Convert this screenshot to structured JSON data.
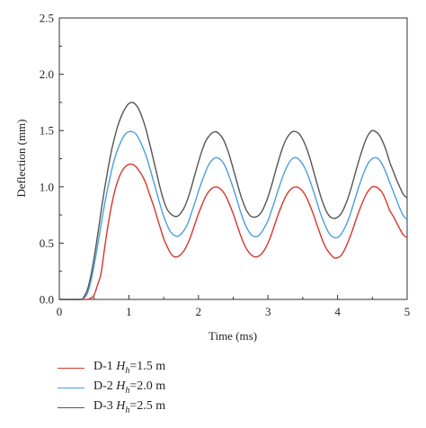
{
  "chart_data": {
    "type": "line",
    "xlabel": "Time (ms)",
    "ylabel": "Deflection (mm)",
    "xlim": [
      0,
      5
    ],
    "ylim": [
      0,
      2.5
    ],
    "x_ticks": [
      "0",
      "1",
      "2",
      "3",
      "4",
      "5"
    ],
    "y_ticks": [
      "0.0",
      "0.5",
      "1.0",
      "1.5",
      "2.0",
      "2.5"
    ],
    "grid": false,
    "legend_position": "bottom-left-outside",
    "series": [
      {
        "name": "D-1 Hh=1.5 m",
        "label_parts": [
          "D-1 ",
          "H",
          "h",
          "=1.5 m"
        ],
        "color": "#d9362b",
        "x": [
          0,
          0.3,
          0.35,
          0.4,
          0.45,
          0.5,
          0.55,
          0.6,
          0.65,
          0.7,
          0.75,
          0.8,
          0.85,
          0.9,
          0.95,
          1.0,
          1.05,
          1.1,
          1.15,
          1.2,
          1.25,
          1.3,
          1.35,
          1.4,
          1.45,
          1.5,
          1.55,
          1.6,
          1.65,
          1.7,
          1.75,
          1.8,
          1.85,
          1.9,
          1.95,
          2.0,
          2.05,
          2.1,
          2.15,
          2.2,
          2.25,
          2.3,
          2.35,
          2.4,
          2.45,
          2.5,
          2.55,
          2.6,
          2.65,
          2.7,
          2.75,
          2.8,
          2.85,
          2.9,
          2.95,
          3.0,
          3.05,
          3.1,
          3.15,
          3.2,
          3.25,
          3.3,
          3.35,
          3.4,
          3.45,
          3.5,
          3.55,
          3.6,
          3.65,
          3.7,
          3.75,
          3.8,
          3.85,
          3.9,
          3.95,
          4.0,
          4.05,
          4.1,
          4.15,
          4.2,
          4.25,
          4.3,
          4.35,
          4.4,
          4.45,
          4.5,
          4.55,
          4.6,
          4.65,
          4.7,
          4.75,
          4.8,
          4.85,
          4.9,
          4.95,
          5.0
        ],
        "y": [
          0,
          0,
          0,
          0,
          0.01,
          0.04,
          0.13,
          0.23,
          0.45,
          0.66,
          0.83,
          0.97,
          1.07,
          1.14,
          1.18,
          1.2,
          1.2,
          1.18,
          1.14,
          1.09,
          1.02,
          0.93,
          0.84,
          0.74,
          0.64,
          0.54,
          0.47,
          0.41,
          0.38,
          0.38,
          0.4,
          0.44,
          0.5,
          0.58,
          0.67,
          0.76,
          0.84,
          0.91,
          0.96,
          0.99,
          1.0,
          0.99,
          0.96,
          0.91,
          0.84,
          0.76,
          0.67,
          0.58,
          0.5,
          0.44,
          0.4,
          0.38,
          0.38,
          0.4,
          0.44,
          0.5,
          0.58,
          0.67,
          0.76,
          0.84,
          0.91,
          0.96,
          0.99,
          1.0,
          0.99,
          0.96,
          0.91,
          0.84,
          0.76,
          0.67,
          0.58,
          0.5,
          0.44,
          0.4,
          0.37,
          0.37,
          0.39,
          0.44,
          0.51,
          0.59,
          0.68,
          0.77,
          0.85,
          0.92,
          0.97,
          1.0,
          1.0,
          0.98,
          0.94,
          0.87,
          0.79,
          0.74,
          0.68,
          0.62,
          0.57,
          0.55
        ]
      },
      {
        "name": "D-2 Hh=2.0 m",
        "label_parts": [
          "D-2 ",
          "H",
          "h",
          "=2.0 m"
        ],
        "color": "#4a9fe0",
        "x": [
          0,
          0.3,
          0.35,
          0.4,
          0.45,
          0.5,
          0.55,
          0.6,
          0.65,
          0.7,
          0.75,
          0.8,
          0.85,
          0.9,
          0.95,
          1.0,
          1.05,
          1.1,
          1.15,
          1.2,
          1.25,
          1.3,
          1.35,
          1.4,
          1.45,
          1.5,
          1.55,
          1.6,
          1.65,
          1.7,
          1.75,
          1.8,
          1.85,
          1.9,
          1.95,
          2.0,
          2.05,
          2.1,
          2.15,
          2.2,
          2.25,
          2.3,
          2.35,
          2.4,
          2.45,
          2.5,
          2.55,
          2.6,
          2.65,
          2.7,
          2.75,
          2.8,
          2.85,
          2.9,
          2.95,
          3.0,
          3.05,
          3.1,
          3.15,
          3.2,
          3.25,
          3.3,
          3.35,
          3.4,
          3.45,
          3.5,
          3.55,
          3.6,
          3.65,
          3.7,
          3.75,
          3.8,
          3.85,
          3.9,
          3.95,
          4.0,
          4.05,
          4.1,
          4.15,
          4.2,
          4.25,
          4.3,
          4.35,
          4.4,
          4.45,
          4.5,
          4.55,
          4.6,
          4.65,
          4.7,
          4.75,
          4.8,
          4.85,
          4.9,
          4.95,
          5.0
        ],
        "y": [
          0,
          0,
          0.01,
          0.05,
          0.15,
          0.3,
          0.48,
          0.66,
          0.84,
          1.0,
          1.14,
          1.26,
          1.35,
          1.42,
          1.47,
          1.49,
          1.49,
          1.47,
          1.42,
          1.35,
          1.27,
          1.17,
          1.06,
          0.95,
          0.84,
          0.74,
          0.66,
          0.6,
          0.57,
          0.56,
          0.58,
          0.62,
          0.68,
          0.77,
          0.86,
          0.96,
          1.05,
          1.13,
          1.2,
          1.24,
          1.26,
          1.25,
          1.22,
          1.16,
          1.08,
          0.99,
          0.89,
          0.79,
          0.7,
          0.63,
          0.58,
          0.56,
          0.56,
          0.59,
          0.64,
          0.7,
          0.79,
          0.88,
          0.98,
          1.07,
          1.15,
          1.21,
          1.25,
          1.26,
          1.24,
          1.2,
          1.14,
          1.06,
          0.97,
          0.87,
          0.77,
          0.69,
          0.62,
          0.57,
          0.55,
          0.55,
          0.58,
          0.63,
          0.7,
          0.79,
          0.89,
          0.99,
          1.08,
          1.16,
          1.22,
          1.25,
          1.26,
          1.24,
          1.19,
          1.12,
          1.04,
          0.96,
          0.88,
          0.8,
          0.74,
          0.71
        ]
      },
      {
        "name": "D-3 Hh=2.5 m",
        "label_parts": [
          "D-3 ",
          "H",
          "h",
          "=2.5 m"
        ],
        "color": "#555555",
        "x": [
          0,
          0.3,
          0.35,
          0.4,
          0.45,
          0.5,
          0.55,
          0.6,
          0.65,
          0.7,
          0.75,
          0.8,
          0.85,
          0.9,
          0.95,
          1.0,
          1.05,
          1.1,
          1.15,
          1.2,
          1.25,
          1.3,
          1.35,
          1.4,
          1.45,
          1.5,
          1.55,
          1.6,
          1.65,
          1.7,
          1.75,
          1.8,
          1.85,
          1.9,
          1.95,
          2.0,
          2.05,
          2.1,
          2.15,
          2.2,
          2.25,
          2.3,
          2.35,
          2.4,
          2.45,
          2.5,
          2.55,
          2.6,
          2.65,
          2.7,
          2.75,
          2.8,
          2.85,
          2.9,
          2.95,
          3.0,
          3.05,
          3.1,
          3.15,
          3.2,
          3.25,
          3.3,
          3.35,
          3.4,
          3.45,
          3.5,
          3.55,
          3.6,
          3.65,
          3.7,
          3.75,
          3.8,
          3.85,
          3.9,
          3.95,
          4.0,
          4.05,
          4.1,
          4.15,
          4.2,
          4.25,
          4.3,
          4.35,
          4.4,
          4.45,
          4.5,
          4.55,
          4.6,
          4.65,
          4.7,
          4.75,
          4.8,
          4.85,
          4.9,
          4.95,
          5.0
        ],
        "y": [
          0,
          0,
          0.02,
          0.08,
          0.2,
          0.37,
          0.57,
          0.78,
          0.98,
          1.16,
          1.32,
          1.45,
          1.56,
          1.64,
          1.7,
          1.74,
          1.75,
          1.73,
          1.68,
          1.6,
          1.5,
          1.38,
          1.25,
          1.12,
          0.99,
          0.88,
          0.8,
          0.76,
          0.74,
          0.74,
          0.77,
          0.82,
          0.9,
          1.0,
          1.11,
          1.22,
          1.32,
          1.4,
          1.45,
          1.48,
          1.49,
          1.47,
          1.43,
          1.36,
          1.27,
          1.16,
          1.05,
          0.94,
          0.85,
          0.78,
          0.74,
          0.73,
          0.74,
          0.77,
          0.83,
          0.91,
          1.01,
          1.12,
          1.23,
          1.33,
          1.41,
          1.46,
          1.49,
          1.49,
          1.47,
          1.42,
          1.35,
          1.26,
          1.15,
          1.04,
          0.93,
          0.84,
          0.77,
          0.73,
          0.72,
          0.73,
          0.76,
          0.82,
          0.9,
          1.0,
          1.11,
          1.22,
          1.32,
          1.41,
          1.47,
          1.5,
          1.49,
          1.46,
          1.4,
          1.32,
          1.22,
          1.14,
          1.06,
          0.99,
          0.93,
          0.9
        ]
      }
    ]
  }
}
